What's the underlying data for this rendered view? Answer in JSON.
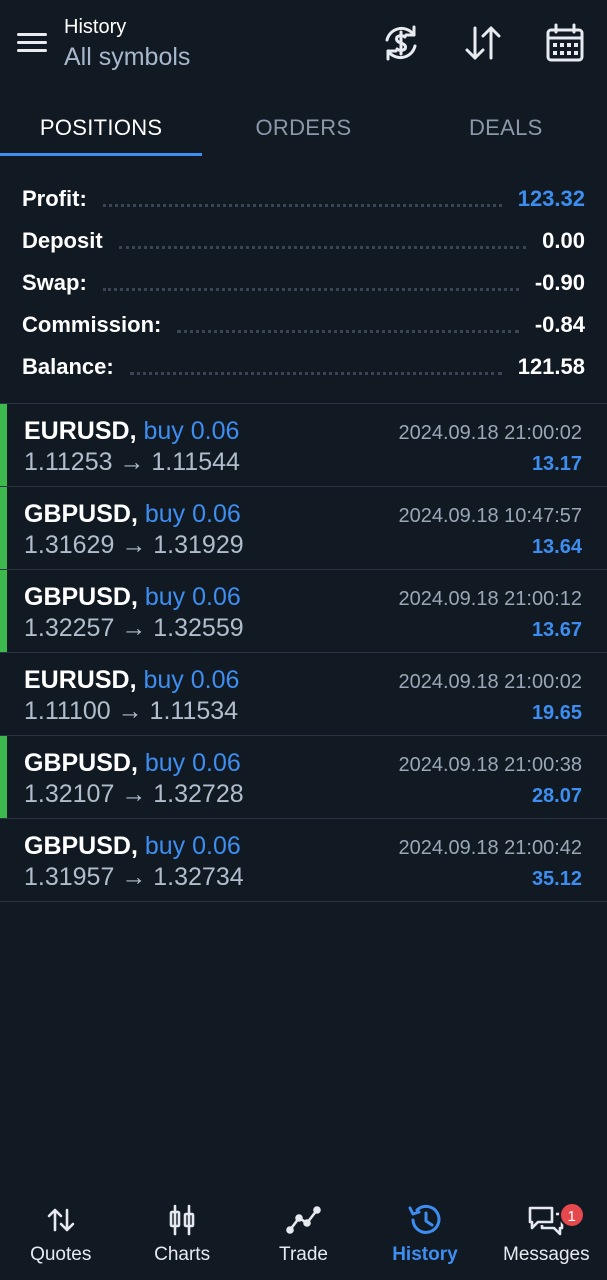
{
  "header": {
    "title": "History",
    "subtitle": "All symbols",
    "icons": [
      "menu-icon",
      "currency-exchange-icon",
      "sort-icon",
      "calendar-icon"
    ]
  },
  "tabs": [
    {
      "label": "POSITIONS",
      "active": true
    },
    {
      "label": "ORDERS",
      "active": false
    },
    {
      "label": "DEALS",
      "active": false
    }
  ],
  "summary": {
    "profit_label": "Profit:",
    "profit_value": "123.32",
    "deposit_label": "Deposit",
    "deposit_value": "0.00",
    "swap_label": "Swap:",
    "swap_value": "-0.90",
    "commission_label": "Commission:",
    "commission_value": "-0.84",
    "balance_label": "Balance:",
    "balance_value": "121.58"
  },
  "positions": [
    {
      "symbol": "EURUSD,",
      "side": "buy 0.06",
      "prices": "1.11253 → 1.11544",
      "time": "2024.09.18 21:00:02",
      "profit": "13.17",
      "marked": true
    },
    {
      "symbol": "GBPUSD,",
      "side": "buy 0.06",
      "prices": "1.31629 → 1.31929",
      "time": "2024.09.18 10:47:57",
      "profit": "13.64",
      "marked": true
    },
    {
      "symbol": "GBPUSD,",
      "side": "buy 0.06",
      "prices": "1.32257 → 1.32559",
      "time": "2024.09.18 21:00:12",
      "profit": "13.67",
      "marked": true
    },
    {
      "symbol": "EURUSD,",
      "side": "buy 0.06",
      "prices": "1.11100 → 1.11534",
      "time": "2024.09.18 21:00:02",
      "profit": "19.65",
      "marked": false
    },
    {
      "symbol": "GBPUSD,",
      "side": "buy 0.06",
      "prices": "1.32107 → 1.32728",
      "time": "2024.09.18 21:00:38",
      "profit": "28.07",
      "marked": true
    },
    {
      "symbol": "GBPUSD,",
      "side": "buy 0.06",
      "prices": "1.31957 → 1.32734",
      "time": "2024.09.18 21:00:42",
      "profit": "35.12",
      "marked": false
    }
  ],
  "nav": [
    {
      "label": "Quotes",
      "icon": "quotes-icon",
      "active": false
    },
    {
      "label": "Charts",
      "icon": "charts-icon",
      "active": false
    },
    {
      "label": "Trade",
      "icon": "trade-icon",
      "active": false
    },
    {
      "label": "History",
      "icon": "history-icon",
      "active": true
    },
    {
      "label": "Messages",
      "icon": "messages-icon",
      "active": false,
      "badge": "1"
    }
  ],
  "colors": {
    "background": "#111923",
    "accent": "#3d8ef0",
    "profit_marker": "#3dba4e",
    "badge": "#e5484d"
  }
}
